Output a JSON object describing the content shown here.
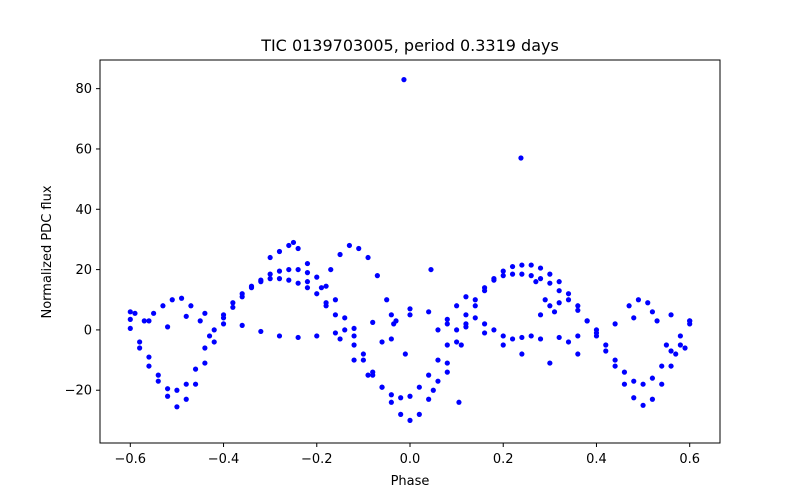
{
  "chart_data": {
    "type": "scatter",
    "title": "TIC 0139703005, period 0.3319 days",
    "xlabel": "Phase",
    "ylabel": "Normalized PDC flux",
    "xlim": [
      -0.665,
      0.665
    ],
    "ylim": [
      -37.5,
      89.5
    ],
    "xticks": [
      -0.6,
      -0.4,
      -0.2,
      0.0,
      0.2,
      0.4,
      0.6
    ],
    "xtick_labels": [
      "−0.6",
      "−0.4",
      "−0.2",
      "0.0",
      "0.2",
      "0.4",
      "0.6"
    ],
    "yticks": [
      -20,
      0,
      20,
      40,
      60,
      80
    ],
    "ytick_labels": [
      "−20",
      "0",
      "20",
      "40",
      "60",
      "80"
    ],
    "grid": false,
    "legend": "none",
    "marker_color": "#0000ff",
    "series": [
      {
        "points": [
          [
            -0.6,
            3.5
          ],
          [
            -0.58,
            -4
          ],
          [
            -0.56,
            -9
          ],
          [
            -0.54,
            -15
          ],
          [
            -0.52,
            -22
          ],
          [
            -0.5,
            -25.5
          ],
          [
            -0.48,
            -23
          ],
          [
            -0.46,
            -18
          ],
          [
            -0.44,
            -11
          ],
          [
            -0.42,
            -4
          ],
          [
            -0.4,
            2
          ],
          [
            -0.38,
            7.5
          ],
          [
            -0.36,
            11
          ],
          [
            -0.34,
            14
          ],
          [
            -0.32,
            16.5
          ],
          [
            -0.3,
            18.5
          ],
          [
            -0.28,
            19.5
          ],
          [
            -0.26,
            20
          ],
          [
            -0.24,
            20
          ],
          [
            -0.22,
            19
          ],
          [
            -0.2,
            17.5
          ],
          [
            -0.18,
            14.5
          ],
          [
            -0.16,
            10
          ],
          [
            -0.14,
            4
          ],
          [
            -0.12,
            -2
          ],
          [
            -0.1,
            -8
          ],
          [
            -0.08,
            -14
          ],
          [
            -0.06,
            -19
          ],
          [
            -0.04,
            -24
          ],
          [
            -0.02,
            -28
          ],
          [
            0.0,
            -30
          ],
          [
            0.02,
            -28
          ],
          [
            0.04,
            -23
          ],
          [
            0.06,
            -17
          ],
          [
            0.08,
            -11
          ],
          [
            0.1,
            -4
          ],
          [
            0.12,
            2
          ],
          [
            0.14,
            8
          ],
          [
            0.16,
            13
          ],
          [
            0.18,
            17
          ],
          [
            0.2,
            19.5
          ],
          [
            0.22,
            21
          ],
          [
            0.24,
            21.5
          ],
          [
            0.26,
            21.5
          ],
          [
            0.28,
            20.5
          ],
          [
            0.3,
            18.5
          ],
          [
            0.32,
            16
          ],
          [
            0.34,
            12
          ],
          [
            0.36,
            8
          ],
          [
            0.38,
            3
          ],
          [
            0.4,
            -2
          ],
          [
            0.42,
            -7
          ],
          [
            0.44,
            -12
          ],
          [
            0.46,
            -18
          ],
          [
            0.48,
            -22.5
          ],
          [
            0.5,
            -25
          ],
          [
            0.52,
            -23
          ],
          [
            0.54,
            -18
          ],
          [
            0.56,
            -12
          ],
          [
            0.58,
            -5
          ],
          [
            0.6,
            2
          ]
        ]
      },
      {
        "points": [
          [
            -0.6,
            0.5
          ],
          [
            -0.58,
            -6
          ],
          [
            -0.56,
            -12
          ],
          [
            -0.54,
            -17
          ],
          [
            -0.52,
            -19.5
          ],
          [
            -0.5,
            -20
          ],
          [
            -0.48,
            -18
          ],
          [
            -0.46,
            -13
          ],
          [
            -0.44,
            -6
          ],
          [
            -0.42,
            0
          ],
          [
            -0.4,
            5
          ],
          [
            -0.38,
            9
          ],
          [
            -0.36,
            12
          ],
          [
            -0.34,
            14.5
          ],
          [
            -0.32,
            16
          ],
          [
            -0.3,
            17
          ],
          [
            -0.28,
            17
          ],
          [
            -0.26,
            16.5
          ],
          [
            -0.24,
            15.5
          ],
          [
            -0.22,
            14
          ],
          [
            -0.2,
            12
          ],
          [
            -0.18,
            9
          ],
          [
            -0.16,
            5
          ],
          [
            -0.14,
            0
          ],
          [
            -0.12,
            -5
          ],
          [
            -0.1,
            -10
          ],
          [
            -0.08,
            -15
          ],
          [
            -0.06,
            -19
          ],
          [
            -0.04,
            -21.5
          ],
          [
            -0.02,
            -22.5
          ],
          [
            0.0,
            -22
          ],
          [
            0.02,
            -19
          ],
          [
            0.04,
            -15
          ],
          [
            0.06,
            -10
          ],
          [
            0.08,
            -5
          ],
          [
            0.1,
            0
          ],
          [
            0.12,
            5
          ],
          [
            0.14,
            10
          ],
          [
            0.16,
            14
          ],
          [
            0.18,
            16.5
          ],
          [
            0.2,
            18
          ],
          [
            0.22,
            18.5
          ],
          [
            0.24,
            18.5
          ],
          [
            0.26,
            18
          ],
          [
            0.28,
            17
          ],
          [
            0.3,
            15.5
          ],
          [
            0.32,
            13
          ],
          [
            0.34,
            10
          ],
          [
            0.36,
            6.5
          ],
          [
            0.38,
            3
          ],
          [
            0.4,
            -1
          ],
          [
            0.42,
            -5
          ],
          [
            0.44,
            -10
          ],
          [
            0.46,
            -14
          ],
          [
            0.48,
            -17
          ],
          [
            0.5,
            -18
          ],
          [
            0.52,
            -16
          ],
          [
            0.54,
            -12
          ],
          [
            0.56,
            -7
          ],
          [
            0.58,
            -2
          ],
          [
            0.6,
            3
          ]
        ]
      },
      {
        "points": [
          [
            -0.6,
            6
          ],
          [
            -0.56,
            3
          ],
          [
            -0.52,
            1
          ],
          [
            -0.48,
            4.5
          ],
          [
            -0.44,
            5.5
          ],
          [
            -0.4,
            4
          ],
          [
            -0.36,
            1.5
          ],
          [
            -0.32,
            -0.5
          ],
          [
            -0.28,
            -2
          ],
          [
            -0.24,
            -2.5
          ],
          [
            -0.2,
            -2
          ],
          [
            -0.16,
            -1
          ],
          [
            -0.12,
            0.5
          ],
          [
            -0.08,
            2.5
          ],
          [
            -0.04,
            5
          ],
          [
            0.0,
            7
          ],
          [
            0.04,
            6
          ],
          [
            0.08,
            3.5
          ],
          [
            0.12,
            1
          ],
          [
            0.16,
            -1
          ],
          [
            0.2,
            -2
          ],
          [
            0.24,
            -2.5
          ],
          [
            0.28,
            -3
          ],
          [
            0.32,
            -2.5
          ],
          [
            0.36,
            -2
          ],
          [
            0.4,
            0
          ],
          [
            0.44,
            2
          ],
          [
            0.48,
            4
          ],
          [
            0.52,
            6
          ],
          [
            0.56,
            5
          ],
          [
            0.6,
            3
          ]
        ]
      },
      {
        "points": [
          [
            -0.59,
            5.5
          ],
          [
            -0.57,
            3
          ],
          [
            -0.55,
            5.5
          ],
          [
            -0.53,
            8
          ],
          [
            -0.51,
            10
          ],
          [
            -0.49,
            10.5
          ],
          [
            -0.47,
            8
          ],
          [
            -0.45,
            3
          ],
          [
            -0.43,
            -2
          ],
          [
            -0.3,
            24
          ],
          [
            -0.28,
            26
          ],
          [
            -0.26,
            28
          ],
          [
            -0.25,
            29
          ],
          [
            -0.24,
            27
          ],
          [
            -0.22,
            22
          ],
          [
            -0.19,
            14
          ],
          [
            -0.17,
            20
          ],
          [
            -0.15,
            25
          ],
          [
            -0.13,
            28
          ],
          [
            -0.11,
            27
          ],
          [
            -0.09,
            24
          ],
          [
            -0.07,
            18
          ],
          [
            -0.05,
            10
          ],
          [
            -0.03,
            3
          ],
          [
            -0.01,
            -8
          ],
          [
            0.06,
            0
          ],
          [
            0.08,
            2
          ],
          [
            0.1,
            8
          ],
          [
            0.12,
            11
          ],
          [
            0.16,
            2
          ],
          [
            0.18,
            0
          ],
          [
            0.2,
            -5
          ],
          [
            0.22,
            -3
          ],
          [
            0.24,
            -8
          ],
          [
            0.26,
            -2
          ],
          [
            0.28,
            5
          ],
          [
            0.3,
            8
          ],
          [
            0.32,
            9
          ],
          [
            0.34,
            -4
          ],
          [
            0.36,
            -8
          ],
          [
            0.3,
            -11
          ],
          [
            0.47,
            8
          ],
          [
            0.49,
            10
          ],
          [
            0.51,
            9
          ],
          [
            0.53,
            3
          ],
          [
            0.55,
            -5
          ],
          [
            0.57,
            -8
          ],
          [
            0.59,
            -6
          ]
        ]
      },
      {
        "points": [
          [
            -0.22,
            16
          ],
          [
            -0.18,
            8
          ],
          [
            -0.15,
            -3
          ],
          [
            -0.12,
            -10
          ],
          [
            -0.09,
            -15
          ],
          [
            -0.06,
            -4
          ],
          [
            -0.04,
            -3
          ],
          [
            0.05,
            -20
          ],
          [
            0.08,
            -14
          ],
          [
            0.11,
            -5
          ],
          [
            0.14,
            4
          ],
          [
            0.27,
            16
          ],
          [
            0.29,
            10
          ],
          [
            0.31,
            6
          ]
        ]
      },
      {
        "points": [
          [
            -0.013,
            83
          ],
          [
            0.238,
            57
          ],
          [
            0.045,
            20
          ],
          [
            0.105,
            -24
          ],
          [
            -0.035,
            2
          ],
          [
            0.0,
            5
          ]
        ]
      }
    ]
  }
}
